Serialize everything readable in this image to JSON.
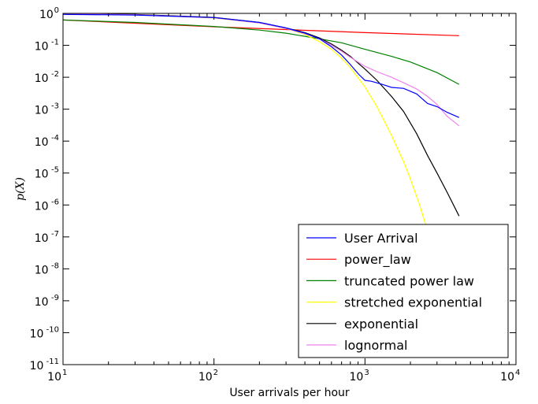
{
  "chart_data": {
    "type": "line",
    "xlabel": "User arrivals per hour",
    "ylabel": "p(X)",
    "xscale": "log",
    "yscale": "log",
    "xlim": [
      10,
      10000
    ],
    "ylim": [
      1e-11,
      1
    ],
    "x_ticks": [
      {
        "value": 10,
        "base": "10",
        "exp": "1"
      },
      {
        "value": 100,
        "base": "10",
        "exp": "2"
      },
      {
        "value": 1000,
        "base": "10",
        "exp": "3"
      },
      {
        "value": 10000,
        "base": "10",
        "exp": "4"
      }
    ],
    "y_ticks": [
      {
        "value": 1,
        "base": "10",
        "exp": "0"
      },
      {
        "value": 0.1,
        "base": "10",
        "exp": "-1"
      },
      {
        "value": 0.01,
        "base": "10",
        "exp": "-2"
      },
      {
        "value": 0.001,
        "base": "10",
        "exp": "-3"
      },
      {
        "value": 0.0001,
        "base": "10",
        "exp": "-4"
      },
      {
        "value": 1e-05,
        "base": "10",
        "exp": "-5"
      },
      {
        "value": 1e-06,
        "base": "10",
        "exp": "-6"
      },
      {
        "value": 1e-07,
        "base": "10",
        "exp": "-7"
      },
      {
        "value": 1e-08,
        "base": "10",
        "exp": "-8"
      },
      {
        "value": 1e-09,
        "base": "10",
        "exp": "-9"
      },
      {
        "value": 1e-10,
        "base": "10",
        "exp": "-10"
      },
      {
        "value": 1e-11,
        "base": "10",
        "exp": "-11"
      }
    ],
    "legend_position": "bottom-right",
    "series": [
      {
        "name": "User Arrival",
        "color": "#0000ff",
        "x": [
          10,
          30,
          100,
          200,
          300,
          400,
          500,
          600,
          700,
          800,
          900,
          1000,
          1100,
          1300,
          1500,
          1800,
          2200,
          2600,
          3000,
          3500,
          4200
        ],
        "y": [
          0.93,
          0.89,
          0.74,
          0.52,
          0.35,
          0.24,
          0.16,
          0.09,
          0.05,
          0.025,
          0.013,
          0.008,
          0.0075,
          0.006,
          0.0048,
          0.0045,
          0.003,
          0.0015,
          0.0012,
          0.0008,
          0.00055
        ]
      },
      {
        "name": "power_law",
        "color": "#ff0000",
        "x": [
          10,
          100,
          1000,
          4200
        ],
        "y": [
          0.62,
          0.38,
          0.25,
          0.2
        ]
      },
      {
        "name": "truncated power law",
        "color": "#008000",
        "x": [
          10,
          30,
          100,
          200,
          300,
          500,
          700,
          1000,
          1500,
          2000,
          3000,
          4200
        ],
        "y": [
          0.62,
          0.52,
          0.39,
          0.3,
          0.24,
          0.16,
          0.12,
          0.075,
          0.045,
          0.03,
          0.014,
          0.006
        ]
      },
      {
        "name": "stretched exponential",
        "color": "#ffff00",
        "x": [
          10,
          30,
          100,
          200,
          300,
          400,
          500,
          600,
          700,
          800,
          1000,
          1200,
          1500,
          1800,
          2000,
          2300,
          2600,
          2900
        ],
        "y": [
          0.97,
          0.92,
          0.72,
          0.5,
          0.34,
          0.22,
          0.13,
          0.075,
          0.04,
          0.02,
          0.005,
          0.0012,
          0.00015,
          2.3e-05,
          6.5e-06,
          1e-06,
          1.5e-07,
          3e-08
        ]
      },
      {
        "name": "exponential",
        "color": "#000000",
        "x": [
          10,
          30,
          100,
          200,
          300,
          400,
          500,
          600,
          700,
          800,
          1000,
          1200,
          1500,
          1800,
          2200,
          2600,
          3000,
          3500,
          4200
        ],
        "y": [
          0.98,
          0.93,
          0.75,
          0.52,
          0.35,
          0.25,
          0.17,
          0.11,
          0.07,
          0.045,
          0.018,
          0.008,
          0.0025,
          0.00085,
          0.00017,
          3.5e-05,
          1e-05,
          2.5e-06,
          4.5e-07
        ]
      },
      {
        "name": "lognormal",
        "color": "#ee82ee",
        "x": [
          10,
          30,
          100,
          200,
          300,
          400,
          500,
          600,
          700,
          800,
          1000,
          1200,
          1500,
          1800,
          2200,
          2600,
          3000,
          3500,
          4200
        ],
        "y": [
          0.97,
          0.91,
          0.73,
          0.5,
          0.34,
          0.23,
          0.16,
          0.1,
          0.065,
          0.042,
          0.022,
          0.015,
          0.01,
          0.0067,
          0.0043,
          0.0025,
          0.0014,
          0.0006,
          0.0003
        ]
      }
    ]
  }
}
